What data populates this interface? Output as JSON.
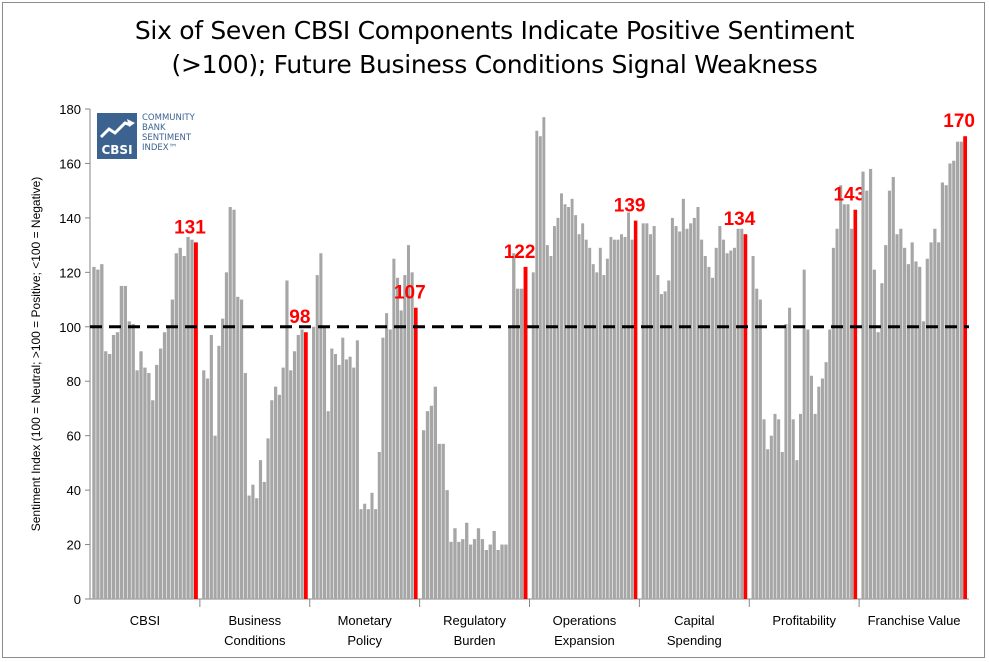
{
  "chart_data": {
    "type": "bar",
    "title_lines": [
      "Six of Seven CBSI Components Indicate Positive Sentiment",
      "(>100); Future Business Conditions Signal Weakness"
    ],
    "ylabel": "Sentiment Index (100 = Neutral; >100 = Positive; <100 = Negative)",
    "ylim": [
      0,
      180
    ],
    "yticks": [
      0,
      20,
      40,
      60,
      80,
      100,
      120,
      140,
      160,
      180
    ],
    "neutral_line": 100,
    "grid": false,
    "legend": "none",
    "colors": {
      "bar": "#a6a6a6",
      "latest": "#ff0000",
      "neutral": "#000000",
      "label": "#ff0000"
    },
    "groups": [
      {
        "name": "CBSI",
        "label_lines": [
          "CBSI"
        ],
        "latest_label": "131",
        "values": [
          122,
          121,
          123,
          91,
          90,
          97,
          98,
          115,
          115,
          102,
          101,
          84,
          91,
          85,
          83,
          73,
          86,
          92,
          98,
          100,
          110,
          127,
          129,
          126,
          133,
          132,
          131
        ]
      },
      {
        "name": "Business Conditions",
        "label_lines": [
          "Business",
          "Conditions"
        ],
        "latest_label": "98",
        "values": [
          84,
          81,
          97,
          60,
          93,
          103,
          120,
          144,
          143,
          111,
          110,
          83,
          38,
          42,
          37,
          51,
          43,
          59,
          73,
          78,
          75,
          85,
          117,
          84,
          91,
          97,
          99,
          98
        ]
      },
      {
        "name": "Monetary Policy",
        "label_lines": [
          "Monetary",
          "Policy"
        ],
        "latest_label": "107",
        "values": [
          100,
          119,
          127,
          100,
          69,
          92,
          90,
          86,
          96,
          88,
          89,
          85,
          95,
          33,
          35,
          33,
          39,
          33,
          54,
          96,
          105,
          99,
          125,
          118,
          106,
          119,
          130,
          120,
          107
        ]
      },
      {
        "name": "Regulatory Burden",
        "label_lines": [
          "Regulatory",
          "Burden"
        ],
        "latest_label": "122",
        "values": [
          62,
          69,
          71,
          78,
          57,
          57,
          40,
          21,
          26,
          21,
          22,
          28,
          20,
          22,
          26,
          22,
          18,
          20,
          25,
          18,
          20,
          20,
          100,
          127,
          114,
          114,
          122
        ]
      },
      {
        "name": "Operations Expansion",
        "label_lines": [
          "Operations",
          "Expansion"
        ],
        "latest_label": "139",
        "values": [
          120,
          172,
          170,
          177,
          130,
          126,
          137,
          140,
          149,
          145,
          144,
          147,
          141,
          134,
          138,
          132,
          129,
          123,
          120,
          129,
          119,
          125,
          133,
          132,
          132,
          134,
          133,
          142,
          132,
          139
        ]
      },
      {
        "name": "Capital Spending",
        "label_lines": [
          "Capital",
          "Spending"
        ],
        "latest_label": "134",
        "values": [
          138,
          138,
          134,
          137,
          119,
          112,
          113,
          117,
          140,
          137,
          135,
          147,
          136,
          138,
          140,
          144,
          132,
          126,
          122,
          118,
          129,
          137,
          132,
          127,
          128,
          129,
          136,
          136,
          134
        ]
      },
      {
        "name": "Profitability",
        "label_lines": [
          "Profitability"
        ],
        "latest_label": "143",
        "values": [
          126,
          114,
          110,
          66,
          55,
          60,
          68,
          66,
          54,
          101,
          107,
          66,
          51,
          68,
          121,
          99,
          82,
          68,
          78,
          81,
          87,
          99,
          129,
          136,
          152,
          145,
          145,
          136,
          143
        ]
      },
      {
        "name": "Franchise Value",
        "label_lines": [
          "Franchise Value"
        ],
        "latest_label": "170",
        "values": [
          157,
          150,
          158,
          121,
          98,
          116,
          130,
          150,
          155,
          134,
          136,
          129,
          123,
          131,
          124,
          122,
          102,
          125,
          131,
          136,
          131,
          153,
          152,
          160,
          161,
          168,
          168,
          170
        ]
      }
    ]
  },
  "logo": {
    "mark_text": "CBSI",
    "lines": [
      "COMMUNITY",
      "BANK",
      "SENTIMENT",
      "INDEX™"
    ]
  }
}
